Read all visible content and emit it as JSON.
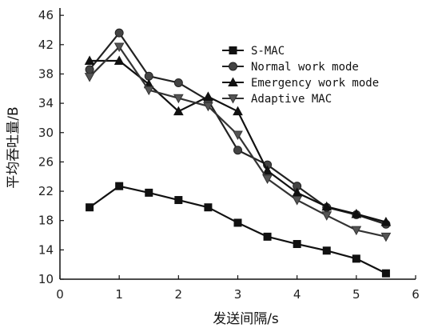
{
  "chart_data": {
    "type": "line",
    "xlabel": "发送间隔/s",
    "ylabel": "平均吞吐量/B",
    "xlim": [
      0,
      6
    ],
    "ylim": [
      10,
      47
    ],
    "xticks": [
      0,
      1,
      2,
      3,
      4,
      5,
      6
    ],
    "yticks": [
      10,
      14,
      18,
      22,
      26,
      30,
      34,
      38,
      42,
      46
    ],
    "grid": false,
    "legend_position": "top-right",
    "x": [
      0.5,
      1.0,
      1.5,
      2.0,
      2.5,
      3.0,
      3.5,
      4.0,
      4.5,
      5.0,
      5.5
    ],
    "series": [
      {
        "name": "S-MAC",
        "marker": "square",
        "values": [
          19.8,
          22.7,
          21.8,
          20.8,
          19.8,
          17.7,
          15.8,
          14.8,
          13.9,
          12.8,
          10.8
        ]
      },
      {
        "name": "Normal work mode",
        "marker": "circle",
        "values": [
          38.6,
          43.6,
          37.7,
          36.8,
          34.4,
          27.6,
          25.6,
          22.7,
          19.8,
          18.8,
          17.5
        ]
      },
      {
        "name": "Emergency work mode",
        "marker": "triangle-up",
        "values": [
          39.8,
          39.8,
          36.6,
          32.9,
          34.9,
          32.9,
          24.8,
          21.8,
          19.9,
          18.9,
          17.8
        ]
      },
      {
        "name": "Adaptive MAC",
        "marker": "triangle-down",
        "values": [
          37.6,
          41.7,
          35.8,
          34.7,
          33.6,
          29.7,
          23.7,
          20.8,
          18.7,
          16.7,
          15.8
        ]
      }
    ]
  }
}
